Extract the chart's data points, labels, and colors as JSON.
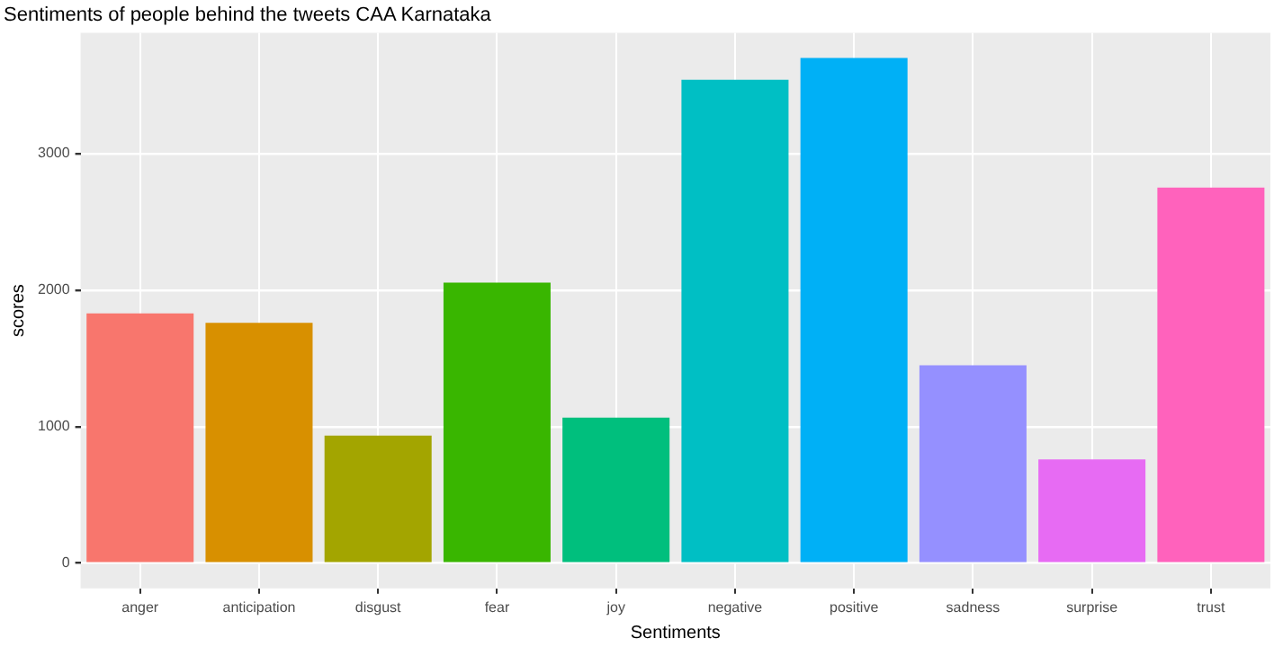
{
  "chart_data": {
    "type": "bar",
    "title": "Sentiments of people behind the tweets CAA Karnataka",
    "xlabel": "Sentiments",
    "ylabel": "scores",
    "categories": [
      "anger",
      "anticipation",
      "disgust",
      "fear",
      "joy",
      "negative",
      "positive",
      "sadness",
      "surprise",
      "trust"
    ],
    "values": [
      1830,
      1760,
      935,
      2055,
      1065,
      3540,
      3700,
      1450,
      760,
      2750
    ],
    "colors": [
      "#f8766d",
      "#d89000",
      "#a3a500",
      "#39b600",
      "#00bf7d",
      "#00bfc4",
      "#00b0f6",
      "#9590ff",
      "#e76bf3",
      "#ff62bc"
    ],
    "ylim": [
      -185,
      3885
    ],
    "yticks": [
      0,
      1000,
      2000,
      3000
    ],
    "grid": true,
    "legend": false
  }
}
